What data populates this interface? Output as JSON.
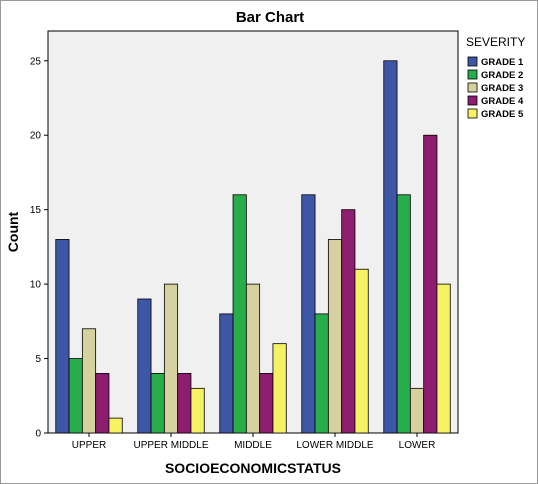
{
  "chart_data": {
    "type": "bar",
    "title": "Bar Chart",
    "xlabel": "SOCIOECONOMICSTATUS",
    "ylabel": "Count",
    "categories": [
      "UPPER",
      "UPPER MIDDLE",
      "MIDDLE",
      "LOWER MIDDLE",
      "LOWER"
    ],
    "ylim": [
      0,
      27
    ],
    "yticks": [
      0,
      5,
      10,
      15,
      20,
      25
    ],
    "legend_title": "SEVERITY",
    "legend_position": "right",
    "grid": false,
    "series": [
      {
        "name": "GRADE 1",
        "color": "#3d57a6",
        "values": [
          13,
          9,
          8,
          16,
          25
        ]
      },
      {
        "name": "GRADE 2",
        "color": "#27ad4a",
        "values": [
          5,
          4,
          16,
          8,
          16
        ]
      },
      {
        "name": "GRADE 3",
        "color": "#d6d2a0",
        "values": [
          7,
          10,
          10,
          13,
          3
        ]
      },
      {
        "name": "GRADE 4",
        "color": "#8d1d6e",
        "values": [
          4,
          4,
          4,
          15,
          20
        ]
      },
      {
        "name": "GRADE 5",
        "color": "#f7f263",
        "values": [
          1,
          3,
          6,
          11,
          10
        ]
      }
    ],
    "plot_background": "#f0f0f0"
  }
}
